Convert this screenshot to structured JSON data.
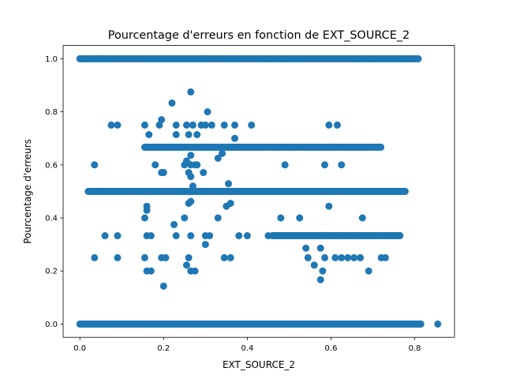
{
  "chart_data": {
    "type": "scatter",
    "title": "Pourcentage d'erreurs en fonction de EXT_SOURCE_2",
    "xlabel": "EXT_SOURCE_2",
    "ylabel": "Pourcentage d'erreurs",
    "xlim": [
      -0.04,
      0.895
    ],
    "ylim": [
      -0.05,
      1.05
    ],
    "xticks": [
      0.0,
      0.2,
      0.4,
      0.6,
      0.8
    ],
    "xtick_labels": [
      "0.0",
      "0.2",
      "0.4",
      "0.6",
      "0.8"
    ],
    "yticks": [
      0.0,
      0.2,
      0.4,
      0.6,
      0.8,
      1.0
    ],
    "ytick_labels": [
      "0.0",
      "0.2",
      "0.4",
      "0.6",
      "0.8",
      "1.0"
    ],
    "grid": false,
    "legend": "none",
    "marker_color": "#1f77b4",
    "bands": [
      {
        "y": 1.0,
        "x_start": 0.0,
        "x_end": 0.81
      },
      {
        "y": 0.0,
        "x_start": 0.0,
        "x_end": 0.815
      },
      {
        "y": 0.5,
        "x_start": 0.02,
        "x_end": 0.78
      },
      {
        "y": 0.6667,
        "x_start": 0.155,
        "x_end": 0.72
      },
      {
        "y": 0.3333,
        "x_start": 0.46,
        "x_end": 0.765
      }
    ],
    "points": [
      [
        0.855,
        0.0
      ],
      [
        0.265,
        0.875
      ],
      [
        0.22,
        0.833
      ],
      [
        0.305,
        0.8
      ],
      [
        0.195,
        0.77
      ],
      [
        0.075,
        0.75
      ],
      [
        0.09,
        0.75
      ],
      [
        0.155,
        0.75
      ],
      [
        0.19,
        0.75
      ],
      [
        0.23,
        0.75
      ],
      [
        0.255,
        0.75
      ],
      [
        0.27,
        0.75
      ],
      [
        0.29,
        0.75
      ],
      [
        0.3,
        0.75
      ],
      [
        0.315,
        0.75
      ],
      [
        0.345,
        0.75
      ],
      [
        0.37,
        0.75
      ],
      [
        0.41,
        0.75
      ],
      [
        0.595,
        0.75
      ],
      [
        0.615,
        0.75
      ],
      [
        0.165,
        0.714
      ],
      [
        0.23,
        0.714
      ],
      [
        0.26,
        0.714
      ],
      [
        0.28,
        0.714
      ],
      [
        0.37,
        0.7
      ],
      [
        0.18,
        0.6
      ],
      [
        0.25,
        0.6
      ],
      [
        0.265,
        0.6
      ],
      [
        0.275,
        0.6
      ],
      [
        0.49,
        0.6
      ],
      [
        0.585,
        0.6
      ],
      [
        0.625,
        0.6
      ],
      [
        0.255,
        0.615
      ],
      [
        0.265,
        0.636
      ],
      [
        0.28,
        0.6
      ],
      [
        0.33,
        0.625
      ],
      [
        0.34,
        0.643
      ],
      [
        0.195,
        0.571
      ],
      [
        0.2,
        0.571
      ],
      [
        0.26,
        0.571
      ],
      [
        0.295,
        0.571
      ],
      [
        0.035,
        0.6
      ],
      [
        0.265,
        0.556
      ],
      [
        0.355,
        0.529
      ],
      [
        0.27,
        0.52
      ],
      [
        0.16,
        0.444
      ],
      [
        0.26,
        0.455
      ],
      [
        0.265,
        0.462
      ],
      [
        0.35,
        0.444
      ],
      [
        0.36,
        0.455
      ],
      [
        0.595,
        0.444
      ],
      [
        0.155,
        0.4
      ],
      [
        0.16,
        0.429
      ],
      [
        0.25,
        0.4
      ],
      [
        0.33,
        0.4
      ],
      [
        0.48,
        0.4
      ],
      [
        0.525,
        0.4
      ],
      [
        0.675,
        0.4
      ],
      [
        0.225,
        0.375
      ],
      [
        0.06,
        0.333
      ],
      [
        0.09,
        0.333
      ],
      [
        0.16,
        0.333
      ],
      [
        0.17,
        0.333
      ],
      [
        0.23,
        0.333
      ],
      [
        0.265,
        0.333
      ],
      [
        0.3,
        0.333
      ],
      [
        0.31,
        0.333
      ],
      [
        0.38,
        0.333
      ],
      [
        0.4,
        0.333
      ],
      [
        0.3,
        0.3
      ],
      [
        0.54,
        0.286
      ],
      [
        0.575,
        0.286
      ],
      [
        0.035,
        0.25
      ],
      [
        0.09,
        0.25
      ],
      [
        0.155,
        0.25
      ],
      [
        0.195,
        0.25
      ],
      [
        0.205,
        0.25
      ],
      [
        0.26,
        0.25
      ],
      [
        0.345,
        0.25
      ],
      [
        0.36,
        0.25
      ],
      [
        0.545,
        0.25
      ],
      [
        0.585,
        0.25
      ],
      [
        0.61,
        0.25
      ],
      [
        0.625,
        0.25
      ],
      [
        0.64,
        0.25
      ],
      [
        0.655,
        0.25
      ],
      [
        0.67,
        0.25
      ],
      [
        0.72,
        0.25
      ],
      [
        0.73,
        0.25
      ],
      [
        0.255,
        0.222
      ],
      [
        0.56,
        0.222
      ],
      [
        0.16,
        0.2
      ],
      [
        0.17,
        0.2
      ],
      [
        0.265,
        0.2
      ],
      [
        0.275,
        0.2
      ],
      [
        0.58,
        0.2
      ],
      [
        0.69,
        0.2
      ],
      [
        0.575,
        0.167
      ],
      [
        0.2,
        0.143
      ],
      [
        0.42,
        0.667
      ],
      [
        0.5,
        0.667
      ],
      [
        0.55,
        0.667
      ],
      [
        0.6,
        0.667
      ],
      [
        0.65,
        0.667
      ],
      [
        0.45,
        0.333
      ],
      [
        0.52,
        0.333
      ],
      [
        0.6,
        0.333
      ],
      [
        0.7,
        0.333
      ]
    ]
  }
}
